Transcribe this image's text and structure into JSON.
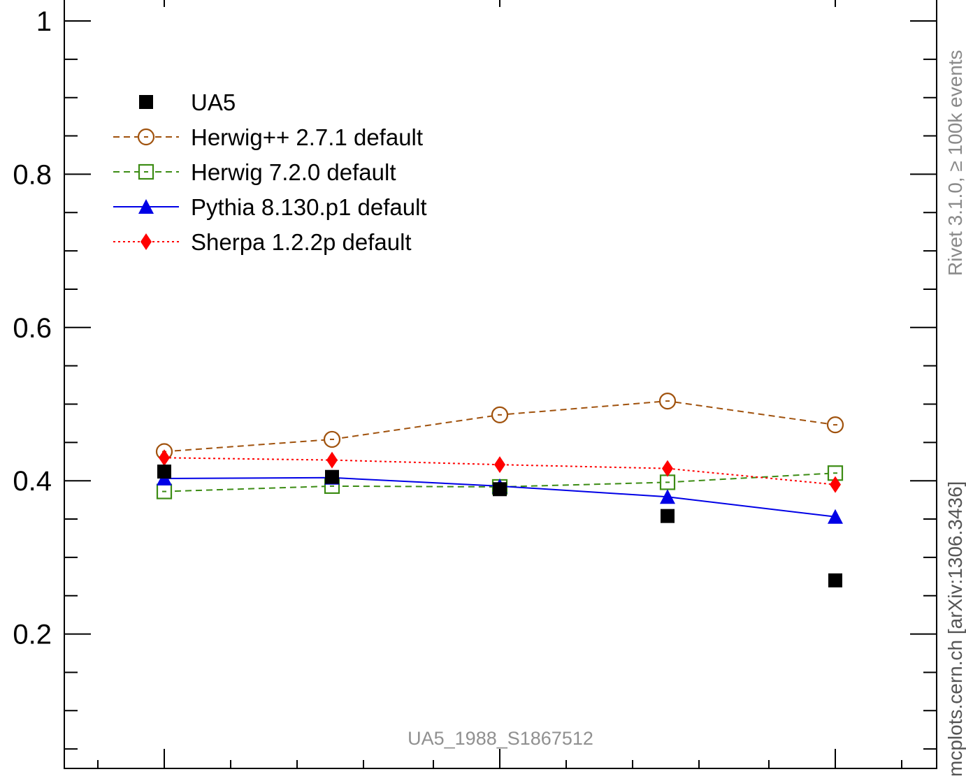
{
  "chart_data": {
    "type": "scatter",
    "x": [
      1,
      2,
      3,
      4,
      5
    ],
    "ylim": [
      0,
      1.05
    ],
    "y_ticks": [
      {
        "value": 0.2,
        "label": "0.2"
      },
      {
        "value": 0.4,
        "label": "0.4"
      },
      {
        "value": 0.6,
        "label": "0.6"
      },
      {
        "value": 0.8,
        "label": "0.8"
      },
      {
        "value": 1.0,
        "label": "1"
      }
    ],
    "y_minor_ticks": [
      0.05,
      0.1,
      0.15,
      0.25,
      0.3,
      0.35,
      0.45,
      0.5,
      0.55,
      0.65,
      0.7,
      0.75,
      0.85,
      0.9,
      0.95
    ],
    "series": [
      {
        "name": "UA5",
        "line": "none",
        "marker": "filled-square",
        "color": "#000000",
        "values": [
          0.412,
          0.405,
          0.389,
          0.354,
          0.27
        ]
      },
      {
        "name": "Herwig++ 2.7.1 default",
        "line": "dashed",
        "marker": "open-circle",
        "color": "#a0520d",
        "values": [
          0.438,
          0.454,
          0.486,
          0.504,
          0.473
        ]
      },
      {
        "name": "Herwig 7.2.0 default",
        "line": "dashed",
        "marker": "open-square",
        "color": "#3c8c14",
        "values": [
          0.386,
          0.393,
          0.392,
          0.398,
          0.41
        ]
      },
      {
        "name": "Pythia 8.130.p1 default",
        "line": "solid",
        "marker": "filled-triangle",
        "color": "#0000e6",
        "values": [
          0.403,
          0.404,
          0.393,
          0.379,
          0.353
        ]
      },
      {
        "name": "Sherpa 1.2.2p default",
        "line": "dotted",
        "marker": "filled-diamond",
        "color": "#ff0000",
        "values": [
          0.43,
          0.427,
          0.421,
          0.416,
          0.395
        ]
      }
    ],
    "legend_position": "top-left",
    "annotations": {
      "analysis_id": "UA5_1988_S1867512",
      "rivet_label": "Rivet 3.1.0, ≥ 100k events",
      "mcplots_label": "mcplots.cern.ch [arXiv:1306.3436]"
    }
  }
}
